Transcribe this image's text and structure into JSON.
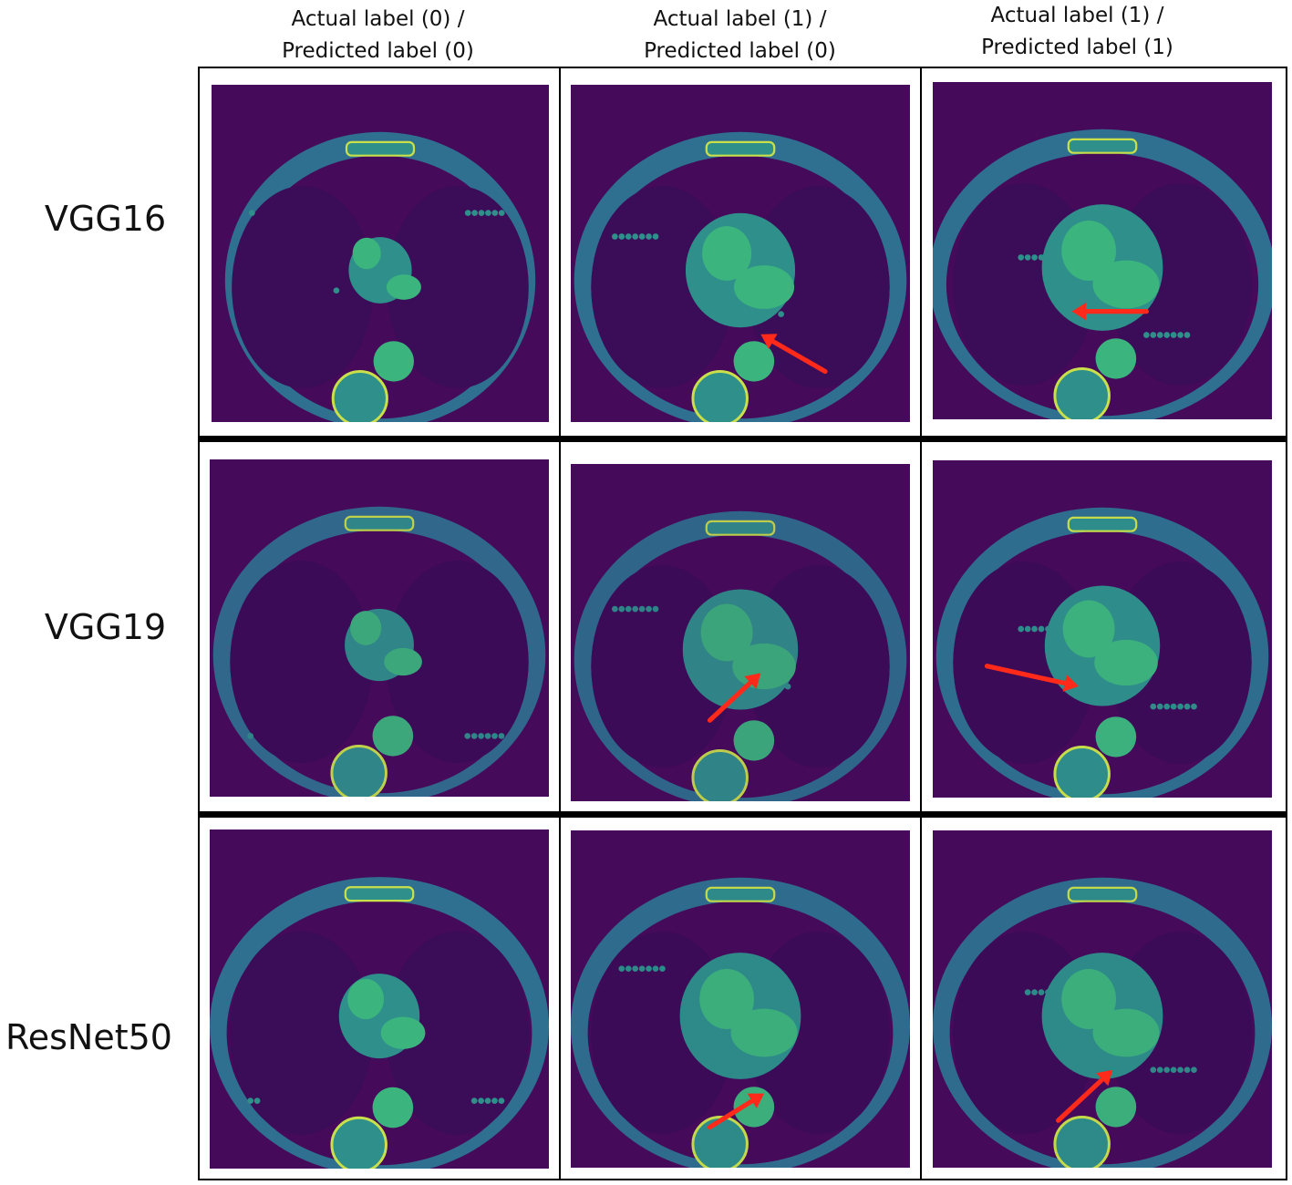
{
  "columns": [
    "Actual label (0) / Predicted label (0)",
    "Actual label (1) / Predicted label (0)",
    "Actual label (1) / Predicted label (1)"
  ],
  "column_lines": [
    [
      "Actual label (0) /",
      "Predicted label (0)"
    ],
    [
      "Actual label (1) /",
      "Predicted label (0)"
    ],
    [
      "Actual label (1) /",
      "Predicted label (1)"
    ]
  ],
  "rows": [
    "VGG16",
    "VGG19",
    "ResNet50"
  ],
  "colors": {
    "background": "#450a5a",
    "soft_tissue": "#2e8f8b",
    "vessel": "#3cb47e",
    "fat": "#2f6f8f",
    "bone": "#c9e04a",
    "air": "#1b0630",
    "arrow": "#ff2a1a"
  },
  "arrow_cells": [
    "r0c1",
    "r0c2",
    "r1c1",
    "r1c2",
    "r2c1",
    "r2c2"
  ]
}
